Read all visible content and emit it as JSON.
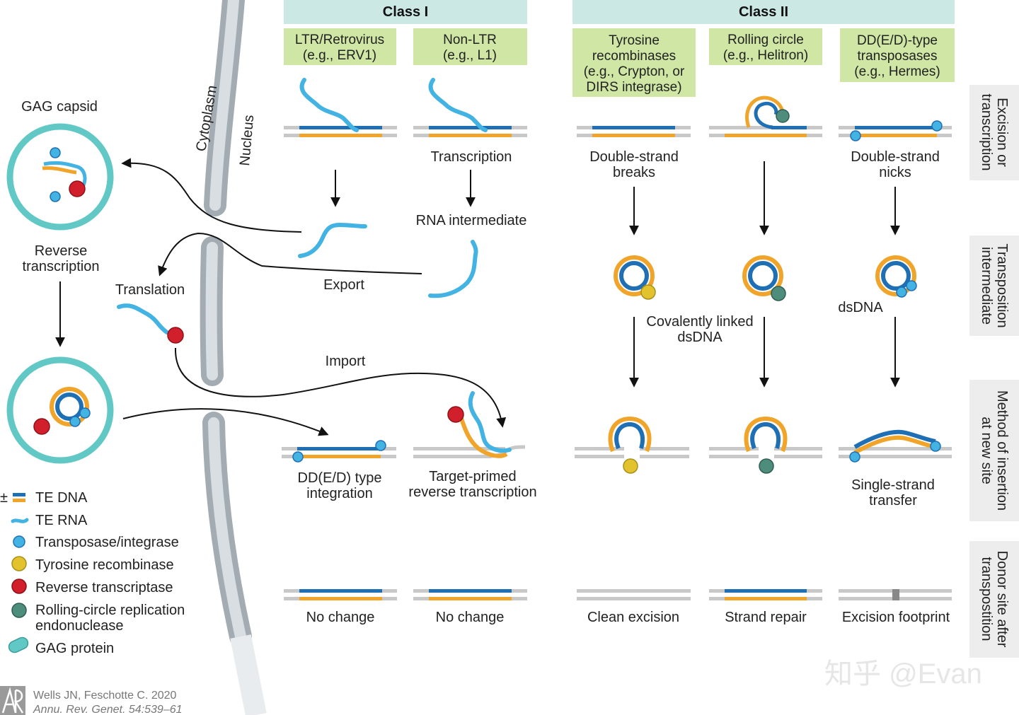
{
  "headers": {
    "class1": "Class I",
    "class2": "Class II"
  },
  "subheaders": {
    "ltr": [
      "LTR/Retrovirus",
      "(e.g., ERV1)"
    ],
    "nonltr": [
      "Non-LTR",
      "(e.g., L1)"
    ],
    "tyrosine": [
      "Tyrosine",
      "recombinases",
      "(e.g., Crypton, or",
      "DIRS integrase)"
    ],
    "rolling": [
      "Rolling circle",
      "(e.g., Helitron)"
    ],
    "dde": [
      "DD(E/D)-type",
      "transposases",
      "(e.g., Hermes)"
    ]
  },
  "side_labels": {
    "row1": [
      "Excision or",
      "transcription"
    ],
    "row2": [
      "Transposition",
      "intermediate"
    ],
    "row3": [
      "Method of insertion",
      "at new site"
    ],
    "row4": [
      "Donor site after",
      "transpostition"
    ]
  },
  "membrane": {
    "cytoplasm": "Cytoplasm",
    "nucleus": "Nucleus"
  },
  "labels": {
    "gag_capsid": "GAG capsid",
    "reverse_transcription": [
      "Reverse",
      "transcription"
    ],
    "translation": "Translation",
    "export": "Export",
    "import": "Import",
    "transcription": "Transcription",
    "rna_intermediate": "RNA intermediate",
    "double_strand_breaks": [
      "Double-strand",
      "breaks"
    ],
    "double_strand_nicks": [
      "Double-strand",
      "nicks"
    ],
    "covalently_linked": [
      "Covalently linked",
      "dsDNA"
    ],
    "dsdna": "dsDNA",
    "dde_integration": [
      "DD(E/D) type",
      "integration"
    ],
    "tprt": [
      "Target-primed",
      "reverse transcription"
    ],
    "single_strand_transfer": [
      "Single-strand",
      "transfer"
    ],
    "no_change_1": "No change",
    "no_change_2": "No change",
    "clean_excision": "Clean excision",
    "strand_repair": "Strand repair",
    "excision_footprint": "Excision footprint"
  },
  "legend": [
    {
      "icon": "te-dna-icon",
      "prefix": "±",
      "text": "TE DNA"
    },
    {
      "icon": "te-rna-icon",
      "text": "TE RNA"
    },
    {
      "icon": "transposase-icon",
      "text": "Transposase/integrase"
    },
    {
      "icon": "tyrosine-recombinase-icon",
      "text": "Tyrosine recombinase"
    },
    {
      "icon": "reverse-transcriptase-icon",
      "text": "Reverse transcriptase"
    },
    {
      "icon": "rolling-circle-endonuclease-icon",
      "text": "Rolling-circle replication",
      "text2": "endonuclease"
    },
    {
      "icon": "gag-protein-icon",
      "text": "GAG protein"
    }
  ],
  "citation": [
    "Wells JN, Feschotte C. 2020",
    "Annu. Rev. Genet. 54:539–61"
  ],
  "watermark": "知乎 @Evan",
  "colors": {
    "header_bg": "#cbe8e4",
    "subheader_bg": "#cfe6a4",
    "side_bg": "#ededed",
    "dna_blue": "#1f6fb5",
    "dna_orange": "#f0a52a",
    "rna": "#43b3e3",
    "transposase": "#43b3e3",
    "tyrosine": "#e2c22d",
    "rt": "#d1202c",
    "rc_endo": "#4e8d7c",
    "gag": "#62c8c6",
    "host_dna": "#c8c8c8",
    "membrane": "#b8c0c6"
  }
}
